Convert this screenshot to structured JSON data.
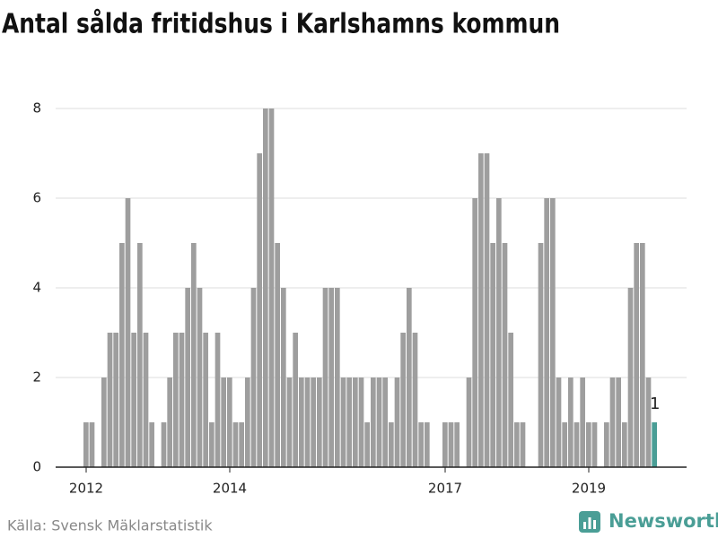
{
  "chart_data": {
    "type": "bar",
    "title": "Antal sålda fritidshus i Karlshamns kommun",
    "source": "Källa: Svensk Mäklarstatistik",
    "brand": "Newsworthy",
    "categories": [
      "2012",
      null,
      null,
      null,
      null,
      null,
      null,
      null,
      null,
      null,
      null,
      null,
      null,
      null,
      null,
      null,
      null,
      null,
      null,
      null,
      null,
      null,
      null,
      null,
      "2014",
      null,
      null,
      null,
      null,
      null,
      null,
      null,
      null,
      null,
      null,
      null,
      null,
      null,
      null,
      null,
      null,
      null,
      null,
      null,
      null,
      null,
      null,
      null,
      null,
      null,
      null,
      null,
      null,
      null,
      null,
      null,
      null,
      null,
      null,
      null,
      "2017",
      null,
      null,
      null,
      null,
      null,
      null,
      null,
      null,
      null,
      null,
      null,
      null,
      null,
      null,
      null,
      null,
      null,
      null,
      null,
      null,
      null,
      null,
      null,
      "2019",
      null,
      null,
      null,
      null,
      null,
      null,
      null,
      null,
      null,
      null,
      null
    ],
    "series": [
      {
        "name": "Antal sålda fritidshus",
        "color": "#9e9e9e",
        "latest_color": "#4a9e96",
        "values": [
          1,
          1,
          0,
          2,
          3,
          3,
          5,
          6,
          3,
          5,
          3,
          1,
          0,
          1,
          2,
          3,
          3,
          4,
          5,
          4,
          3,
          1,
          3,
          2,
          2,
          1,
          1,
          2,
          4,
          7,
          8,
          8,
          5,
          4,
          2,
          3,
          2,
          2,
          2,
          2,
          4,
          4,
          4,
          2,
          2,
          2,
          2,
          1,
          2,
          2,
          2,
          1,
          2,
          3,
          4,
          3,
          1,
          1,
          0,
          0,
          1,
          1,
          1,
          0,
          2,
          6,
          7,
          7,
          5,
          6,
          5,
          3,
          1,
          1,
          0,
          0,
          5,
          6,
          6,
          2,
          1,
          2,
          1,
          2,
          1,
          1,
          0,
          1,
          2,
          2,
          1,
          4,
          5,
          5,
          2,
          1
        ]
      }
    ],
    "ylim": [
      0,
      8
    ],
    "yticks": [
      0,
      2,
      4,
      6,
      8
    ],
    "grid": true
  }
}
